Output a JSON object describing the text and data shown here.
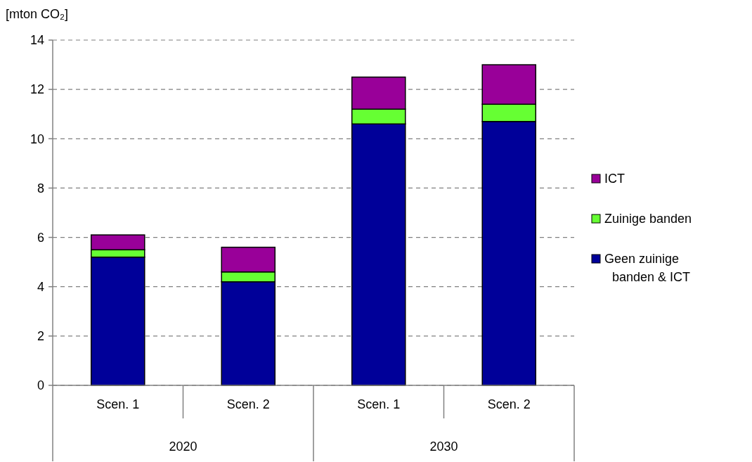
{
  "chart_data": {
    "type": "bar",
    "stacked": true,
    "ylabel": "[mton CO₂]",
    "categories": [
      "Scen. 1",
      "Scen. 2",
      "Scen. 1",
      "Scen. 2"
    ],
    "series": [
      {
        "name": "Geen zuinige banden & ICT",
        "color": "#000099",
        "values": [
          5.2,
          4.2,
          10.6,
          10.7
        ]
      },
      {
        "name": "Zuinige banden",
        "color": "#66ff33",
        "values": [
          0.3,
          0.4,
          0.6,
          0.7
        ]
      },
      {
        "name": "ICT",
        "color": "#990099",
        "values": [
          0.6,
          1.0,
          1.3,
          1.6
        ]
      }
    ],
    "ylim": [
      0,
      14
    ],
    "yticks": [
      0,
      2,
      4,
      6,
      8,
      10,
      12,
      14
    ],
    "grid": "y",
    "legend": "right",
    "annotations": [
      "2020",
      "2030"
    ]
  }
}
